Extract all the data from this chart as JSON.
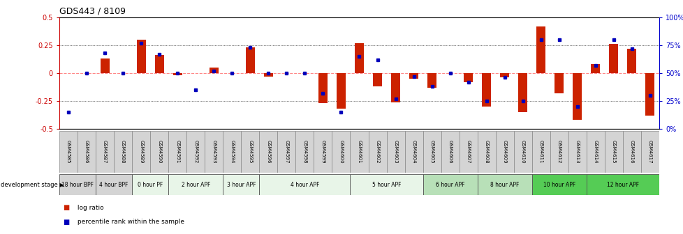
{
  "title": "GDS443 / 8109",
  "samples": [
    "GSM4585",
    "GSM4586",
    "GSM4587",
    "GSM4588",
    "GSM4589",
    "GSM4590",
    "GSM4591",
    "GSM4592",
    "GSM4593",
    "GSM4594",
    "GSM4595",
    "GSM4596",
    "GSM4597",
    "GSM4598",
    "GSM4599",
    "GSM4600",
    "GSM4601",
    "GSM4602",
    "GSM4603",
    "GSM4604",
    "GSM4605",
    "GSM4606",
    "GSM4607",
    "GSM4608",
    "GSM4609",
    "GSM4610",
    "GSM4611",
    "GSM4612",
    "GSM4613",
    "GSM4614",
    "GSM4615",
    "GSM4616",
    "GSM4617"
  ],
  "log_ratio": [
    0.0,
    0.0,
    0.13,
    0.0,
    0.3,
    0.16,
    -0.02,
    0.0,
    0.05,
    0.0,
    0.23,
    -0.03,
    0.0,
    0.0,
    -0.27,
    -0.32,
    0.27,
    -0.12,
    -0.26,
    -0.05,
    -0.13,
    0.0,
    -0.08,
    -0.3,
    -0.04,
    -0.35,
    0.42,
    -0.18,
    -0.42,
    0.08,
    0.26,
    0.22,
    -0.38
  ],
  "percentile": [
    15,
    50,
    68,
    50,
    77,
    67,
    50,
    35,
    52,
    50,
    73,
    50,
    50,
    50,
    32,
    15,
    65,
    62,
    27,
    47,
    38,
    50,
    42,
    25,
    46,
    25,
    80,
    80,
    20,
    57,
    80,
    72,
    30
  ],
  "stages": [
    {
      "label": "18 hour BPF",
      "start": 0,
      "end": 2,
      "color": "#d4d4d4"
    },
    {
      "label": "4 hour BPF",
      "start": 2,
      "end": 4,
      "color": "#d4d4d4"
    },
    {
      "label": "0 hour PF",
      "start": 4,
      "end": 6,
      "color": "#e8f5e8"
    },
    {
      "label": "2 hour APF",
      "start": 6,
      "end": 9,
      "color": "#e8f5e8"
    },
    {
      "label": "3 hour APF",
      "start": 9,
      "end": 11,
      "color": "#e8f5e8"
    },
    {
      "label": "4 hour APF",
      "start": 11,
      "end": 16,
      "color": "#e8f5e8"
    },
    {
      "label": "5 hour APF",
      "start": 16,
      "end": 20,
      "color": "#e8f5e8"
    },
    {
      "label": "6 hour APF",
      "start": 20,
      "end": 23,
      "color": "#b8e0b8"
    },
    {
      "label": "8 hour APF",
      "start": 23,
      "end": 26,
      "color": "#b8e0b8"
    },
    {
      "label": "10 hour APF",
      "start": 26,
      "end": 29,
      "color": "#55cc55"
    },
    {
      "label": "12 hour APF",
      "start": 29,
      "end": 33,
      "color": "#55cc55"
    }
  ],
  "sample_cell_color": "#d4d4d4",
  "ylim_left": [
    -0.5,
    0.5
  ],
  "ylim_right": [
    0,
    100
  ],
  "bar_color": "#cc2200",
  "dot_color": "#0000bb",
  "zero_line_color": "#ff8888",
  "background_color": "#ffffff"
}
